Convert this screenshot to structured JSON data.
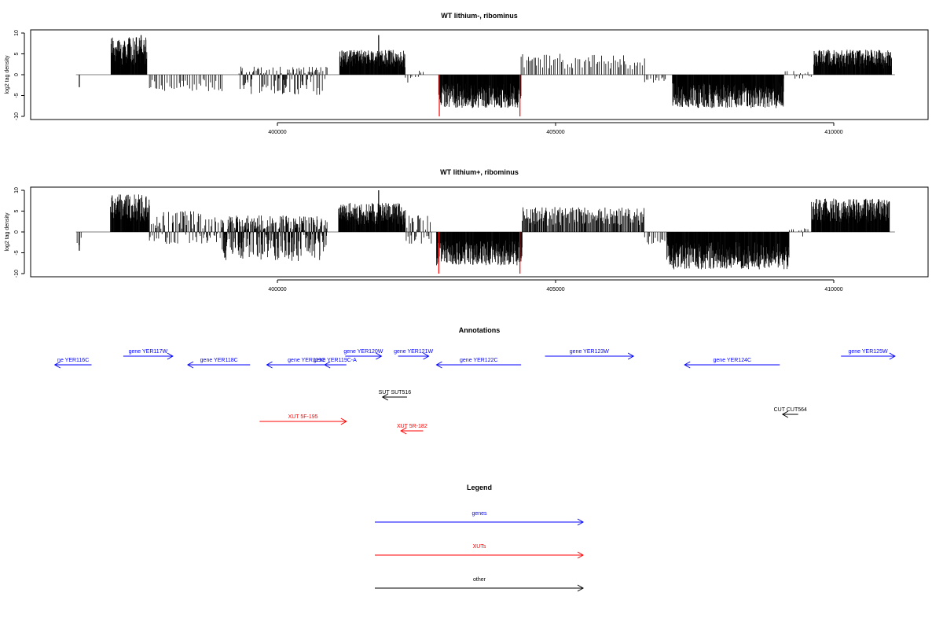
{
  "chart_data": [
    {
      "type": "bar",
      "title": "WT lithium-, ribominus",
      "ylabel": "log2 tag density",
      "xlim": [
        396400,
        410000
      ],
      "ylim": [
        -10,
        10
      ],
      "yticks": [
        -10,
        -5,
        0,
        5,
        10
      ],
      "xticks": [
        400000,
        405000,
        410000
      ],
      "grid": false,
      "segments": [
        {
          "start": 396440,
          "end": 396470,
          "min": -3,
          "max": 0,
          "density": "sparse"
        },
        {
          "start": 397010,
          "end": 397660,
          "min": 0,
          "max": 9,
          "density": "dense"
        },
        {
          "start": 397700,
          "end": 399020,
          "min": -4,
          "max": 0,
          "density": "sparse"
        },
        {
          "start": 399310,
          "end": 400900,
          "min": -5,
          "max": 2,
          "density": "medium"
        },
        {
          "start": 401120,
          "end": 402300,
          "min": 0,
          "max": 6,
          "density": "dense"
        },
        {
          "start": 402300,
          "end": 402660,
          "min": -2,
          "max": 2,
          "density": "sparse"
        },
        {
          "start": 402900,
          "end": 404380,
          "min": -8,
          "max": 0,
          "density": "dense"
        },
        {
          "start": 404380,
          "end": 406600,
          "min": 0,
          "max": 5,
          "density": "sparse"
        },
        {
          "start": 406600,
          "end": 407000,
          "min": -2,
          "max": 0,
          "density": "sparse"
        },
        {
          "start": 407100,
          "end": 409100,
          "min": -8,
          "max": 0,
          "density": "dense"
        },
        {
          "start": 409100,
          "end": 409600,
          "min": -1,
          "max": 1,
          "density": "sparse"
        },
        {
          "start": 409640,
          "end": 411040,
          "min": 0,
          "max": 6,
          "density": "dense"
        }
      ],
      "spikes": [
        {
          "x": 396440,
          "value": -3,
          "color": "#000000"
        },
        {
          "x": 397550,
          "value": 9.5,
          "color": "#000000"
        },
        {
          "x": 401820,
          "value": 9.5,
          "color": "#000000"
        },
        {
          "x": 402910,
          "value": -10,
          "color": "#ff0000"
        },
        {
          "x": 404360,
          "value": -10,
          "color": "#ff0000"
        }
      ]
    },
    {
      "type": "bar",
      "title": "WT lithium+, ribominus",
      "ylabel": "log2 tag density",
      "xlim": [
        396400,
        410000
      ],
      "ylim": [
        -10,
        10
      ],
      "yticks": [
        -10,
        -5,
        0,
        5,
        10
      ],
      "xticks": [
        400000,
        405000,
        410000
      ],
      "grid": false,
      "segments": [
        {
          "start": 396400,
          "end": 396480,
          "min": -4,
          "max": 0,
          "density": "sparse"
        },
        {
          "start": 397000,
          "end": 397700,
          "min": 0,
          "max": 9,
          "density": "dense"
        },
        {
          "start": 397700,
          "end": 399000,
          "min": -3,
          "max": 5,
          "density": "medium"
        },
        {
          "start": 399000,
          "end": 400900,
          "min": -7,
          "max": 4,
          "density": "dense"
        },
        {
          "start": 401100,
          "end": 402300,
          "min": 0,
          "max": 7,
          "density": "dense"
        },
        {
          "start": 402300,
          "end": 402780,
          "min": -3,
          "max": 4,
          "density": "medium"
        },
        {
          "start": 402860,
          "end": 404400,
          "min": -8,
          "max": 0,
          "density": "dense"
        },
        {
          "start": 404400,
          "end": 406600,
          "min": 0,
          "max": 6,
          "density": "medium"
        },
        {
          "start": 406600,
          "end": 407000,
          "min": -3,
          "max": 0,
          "density": "sparse"
        },
        {
          "start": 407000,
          "end": 409200,
          "min": -9,
          "max": 0,
          "density": "dense"
        },
        {
          "start": 409200,
          "end": 409550,
          "min": -3,
          "max": 1,
          "density": "sparse"
        },
        {
          "start": 409600,
          "end": 411000,
          "min": 0,
          "max": 8,
          "density": "dense"
        }
      ],
      "spikes": [
        {
          "x": 396440,
          "value": -4.5,
          "color": "#000000"
        },
        {
          "x": 397640,
          "value": 8.5,
          "color": "#000000"
        },
        {
          "x": 401820,
          "value": 10,
          "color": "#000000"
        },
        {
          "x": 402900,
          "value": -10,
          "color": "#ff0000"
        },
        {
          "x": 404360,
          "value": -10,
          "color": "#ff0000"
        }
      ]
    }
  ],
  "annotations": {
    "title": "Annotations",
    "items": [
      {
        "label": "ne YER116C",
        "start": 396000,
        "end": 396660,
        "strand": "-",
        "row": 1,
        "color": "#0000ff"
      },
      {
        "label": "gene YER117W",
        "start": 397230,
        "end": 398120,
        "strand": "+",
        "row": 0,
        "color": "#0000ff"
      },
      {
        "label": "gene YER118C",
        "start": 398390,
        "end": 399510,
        "strand": "-",
        "row": 1,
        "color": "#0000ff"
      },
      {
        "label": "gene YER119C",
        "start": 399810,
        "end": 401240,
        "strand": "-",
        "row": 1,
        "color": "#0000ff"
      },
      {
        "label": "gene YER119C-A",
        "start": 400850,
        "end": 401220,
        "strand": "-",
        "row": 1,
        "color": "#0000ff"
      },
      {
        "label": "gene YER120W",
        "start": 401220,
        "end": 401870,
        "strand": "+",
        "row": 0,
        "color": "#0000ff"
      },
      {
        "label": "gene YER121W",
        "start": 402170,
        "end": 402720,
        "strand": "+",
        "row": 0,
        "color": "#0000ff"
      },
      {
        "label": "gene YER122C",
        "start": 402860,
        "end": 404380,
        "strand": "-",
        "row": 1,
        "color": "#0000ff"
      },
      {
        "label": "gene YER123W",
        "start": 404810,
        "end": 406400,
        "strand": "+",
        "row": 0,
        "color": "#0000ff"
      },
      {
        "label": "gene YER124C",
        "start": 407320,
        "end": 409030,
        "strand": "-",
        "row": 1,
        "color": "#0000ff"
      },
      {
        "label": "gene YER125W",
        "start": 410130,
        "end": 411100,
        "strand": "+",
        "row": 0,
        "color": "#0000ff"
      },
      {
        "label": "SUT SUT516",
        "start": 401890,
        "end": 402330,
        "strand": "-",
        "row": 2,
        "color": "#000000"
      },
      {
        "label": "CUT CUT564",
        "start": 409080,
        "end": 409360,
        "strand": "-",
        "row": 3,
        "color": "#000000"
      },
      {
        "label": "XUT 5F-195",
        "start": 399680,
        "end": 401240,
        "strand": "+",
        "row": 4,
        "color": "#ff0000"
      },
      {
        "label": "XUT 5R-182",
        "start": 402220,
        "end": 402620,
        "strand": "-",
        "row": 5,
        "color": "#ff0000"
      }
    ]
  },
  "legend": {
    "title": "Legend",
    "items": [
      {
        "label": "genes",
        "color": "#0000ff"
      },
      {
        "label": "XUTs",
        "color": "#ff0000"
      },
      {
        "label": "other",
        "color": "#000000"
      }
    ]
  }
}
